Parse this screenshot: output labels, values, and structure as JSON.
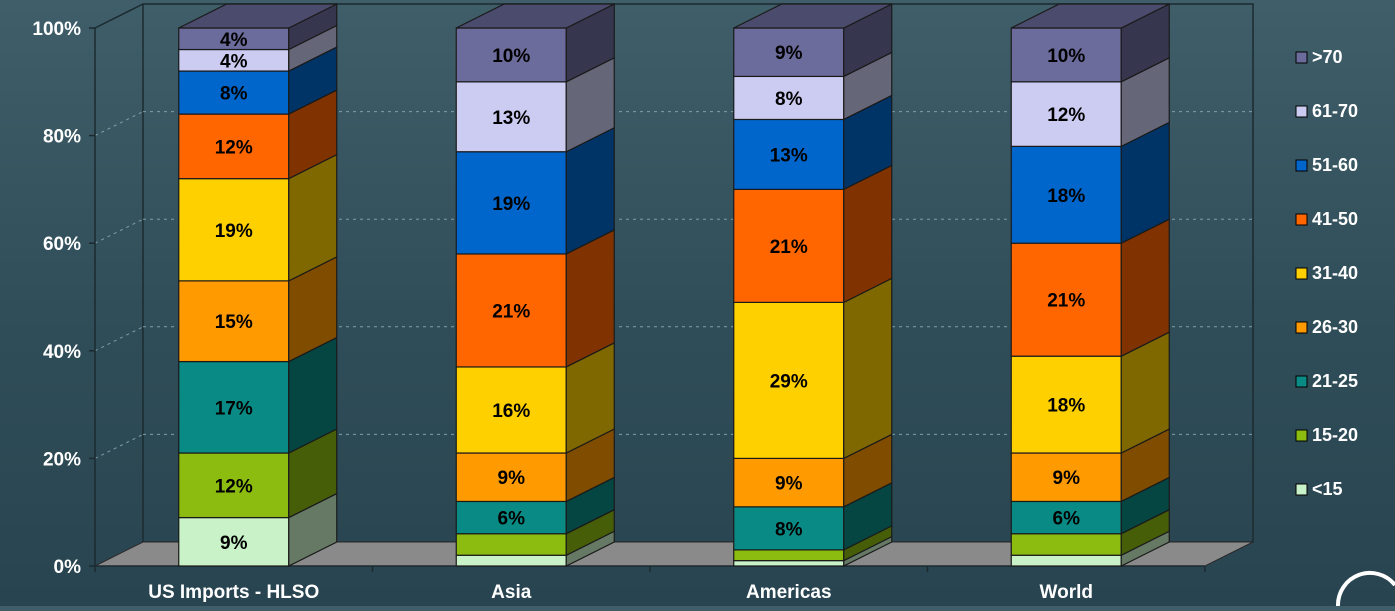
{
  "chart_data": {
    "type": "bar",
    "stacked": true,
    "three_d": true,
    "categories": [
      "US Imports - HLSO",
      "Asia",
      "Americas",
      "World"
    ],
    "ylim": [
      0,
      100
    ],
    "y_ticks": [
      "0%",
      "20%",
      "40%",
      "60%",
      "80%",
      "100%"
    ],
    "grid": true,
    "legend_position": "right",
    "series": [
      {
        "name": "<15",
        "values": [
          9,
          2,
          1,
          2
        ],
        "labels": [
          "9%",
          "",
          "",
          ""
        ],
        "color": "#c9f2c9"
      },
      {
        "name": "15-20",
        "values": [
          12,
          4,
          2,
          4
        ],
        "labels": [
          "12%",
          "",
          "",
          ""
        ],
        "color": "#8cbc10"
      },
      {
        "name": "21-25",
        "values": [
          17,
          6,
          8,
          6
        ],
        "labels": [
          "17%",
          "6%",
          "8%",
          "6%"
        ],
        "color": "#0a8a84"
      },
      {
        "name": "26-30",
        "values": [
          15,
          9,
          9,
          9
        ],
        "labels": [
          "15%",
          "9%",
          "9%",
          "9%"
        ],
        "color": "#ff9a00"
      },
      {
        "name": "31-40",
        "values": [
          19,
          16,
          29,
          18
        ],
        "labels": [
          "19%",
          "16%",
          "29%",
          "18%"
        ],
        "color": "#ffd000"
      },
      {
        "name": "41-50",
        "values": [
          12,
          21,
          21,
          21
        ],
        "labels": [
          "12%",
          "21%",
          "21%",
          "21%"
        ],
        "color": "#ff6600"
      },
      {
        "name": "51-60",
        "values": [
          8,
          19,
          13,
          18
        ],
        "labels": [
          "8%",
          "19%",
          "13%",
          "18%"
        ],
        "color": "#0066cc"
      },
      {
        "name": "61-70",
        "values": [
          4,
          13,
          8,
          12
        ],
        "labels": [
          "4%",
          "13%",
          "8%",
          "12%"
        ],
        "color": "#ccccf2"
      },
      {
        "name": ">70",
        "values": [
          4,
          10,
          9,
          10
        ],
        "labels": [
          "4%",
          "10%",
          "9%",
          "10%"
        ],
        "color": "#6b6b9c"
      }
    ]
  }
}
